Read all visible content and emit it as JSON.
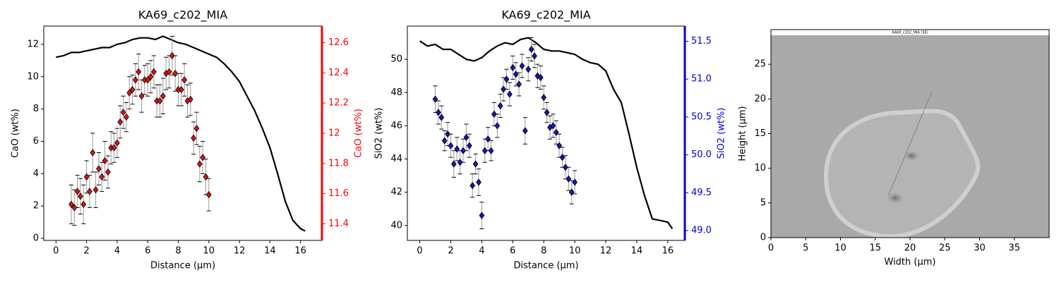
{
  "chart_data": [
    {
      "type": "line",
      "title": "KA69_c202_MIA",
      "xlabel": "Distance (µm)",
      "ylabel": "CaO (wt%)",
      "xlim": [
        -0.8,
        17.4
      ],
      "xticks": [
        0,
        2,
        4,
        6,
        8,
        10,
        12,
        14,
        16
      ],
      "ylim": [
        -0.13,
        13.13
      ],
      "yticks": [
        0,
        2,
        4,
        6,
        8,
        10,
        12
      ],
      "y2label": "CaO (wt%)",
      "y2color": "#ff0000",
      "y2lim": [
        11.29,
        12.71
      ],
      "y2ticks": [
        11.4,
        11.6,
        11.8,
        12.0,
        12.2,
        12.4,
        12.6
      ],
      "series": [
        {
          "color": "#000000",
          "x": [
            0,
            0.5,
            1,
            1.5,
            2,
            2.5,
            3,
            3.5,
            4,
            4.5,
            5,
            5.5,
            6,
            6.5,
            7,
            7.5,
            8,
            8.5,
            9,
            9.5,
            10,
            10.5,
            11,
            11.5,
            12,
            12.5,
            13,
            13.5,
            14,
            14.5,
            15,
            15.5,
            16,
            16.3
          ],
          "values": [
            11.2,
            11.3,
            11.5,
            11.5,
            11.6,
            11.7,
            11.8,
            11.8,
            12.0,
            12.1,
            12.3,
            12.4,
            12.4,
            12.3,
            12.5,
            12.3,
            12.1,
            12.0,
            11.8,
            11.6,
            11.4,
            11.2,
            10.8,
            10.3,
            9.7,
            8.8,
            7.9,
            6.8,
            5.6,
            4.0,
            2.3,
            1.1,
            0.6,
            0.45
          ]
        },
        {
          "color": "#dd1111",
          "marker": "diamond",
          "x": [
            1.0,
            1.2,
            1.4,
            1.6,
            1.8,
            2.0,
            2.2,
            2.4,
            2.6,
            2.8,
            3.0,
            3.2,
            3.4,
            3.6,
            3.8,
            4.0,
            4.2,
            4.4,
            4.6,
            4.8,
            5.0,
            5.2,
            5.4,
            5.6,
            5.8,
            6.0,
            6.2,
            6.4,
            6.6,
            6.8,
            7.0,
            7.2,
            7.4,
            7.6,
            7.8,
            8.0,
            8.2,
            8.4,
            8.6,
            8.8,
            9.0,
            9.2,
            9.4,
            9.6,
            9.8,
            10.0
          ],
          "values": [
            2.1,
            1.9,
            2.9,
            2.6,
            2.1,
            3.8,
            2.9,
            5.3,
            3.0,
            4.3,
            3.8,
            4.8,
            4.1,
            5.6,
            5.6,
            5.9,
            7.2,
            7.8,
            7.5,
            9.0,
            9.2,
            9.8,
            10.3,
            8.8,
            9.8,
            9.8,
            10.0,
            10.3,
            8.5,
            8.5,
            8.8,
            10.2,
            10.3,
            11.3,
            10.2,
            9.2,
            9.2,
            9.8,
            8.5,
            8.6,
            6.2,
            6.8,
            4.6,
            5.0,
            3.8,
            2.7
          ],
          "errors": [
            1.2,
            1.1,
            1.0,
            1.1,
            1.2,
            1.0,
            1.0,
            1.2,
            1.1,
            1.0,
            0.9,
            1.2,
            1.0,
            1.0,
            0.9,
            0.9,
            1.0,
            1.0,
            0.9,
            1.0,
            0.9,
            1.0,
            1.1,
            1.0,
            0.9,
            1.0,
            1.0,
            1.0,
            1.0,
            1.0,
            1.1,
            1.0,
            1.0,
            1.2,
            1.1,
            1.0,
            1.0,
            1.0,
            1.0,
            1.0,
            1.0,
            1.0,
            1.1,
            1.0,
            1.1,
            1.0
          ]
        }
      ]
    },
    {
      "type": "line",
      "title": "KA69_c202_MIA",
      "xlabel": "Distance (µm)",
      "ylabel": "SiO2 (wt%)",
      "xlim": [
        -0.8,
        17.1
      ],
      "xticks": [
        0,
        2,
        4,
        6,
        8,
        10,
        12,
        14,
        16
      ],
      "ylim": [
        39.1,
        52.0
      ],
      "yticks": [
        40,
        42,
        44,
        46,
        48,
        50
      ],
      "y2label": "SiO2 (wt%)",
      "y2color": "#0000dd",
      "y2lim": [
        48.87,
        51.7
      ],
      "y2ticks": [
        {
          "value": 49,
          "label": "49.0"
        },
        49.5,
        {
          "value": 50,
          "label": "50.0"
        },
        50.5,
        {
          "value": 51,
          "label": "51.0"
        },
        51.5
      ],
      "series": [
        {
          "color": "#000000",
          "x": [
            0,
            0.5,
            1,
            1.5,
            2,
            2.5,
            3,
            3.5,
            4,
            4.5,
            5,
            5.5,
            6,
            6.5,
            7,
            7.5,
            8,
            8.5,
            9,
            9.5,
            10,
            10.5,
            11,
            11.5,
            12,
            12.5,
            13,
            13.5,
            14,
            14.5,
            15,
            15.5,
            16,
            16.3
          ],
          "values": [
            51.1,
            50.8,
            50.9,
            50.6,
            50.6,
            50.3,
            50.0,
            49.9,
            50.1,
            50.5,
            50.8,
            51.0,
            50.9,
            51.2,
            51.3,
            51.0,
            50.6,
            50.5,
            50.5,
            50.4,
            50.3,
            50.0,
            49.8,
            49.7,
            49.3,
            48.2,
            47.4,
            45.5,
            43.5,
            41.8,
            40.4,
            40.3,
            40.2,
            39.8
          ]
        },
        {
          "color": "#1515bb",
          "marker": "diamond",
          "x": [
            1.0,
            1.2,
            1.4,
            1.6,
            1.8,
            2.0,
            2.2,
            2.4,
            2.6,
            2.8,
            3.0,
            3.2,
            3.4,
            3.6,
            3.8,
            4.0,
            4.2,
            4.4,
            4.6,
            4.8,
            5.0,
            5.2,
            5.4,
            5.6,
            5.8,
            6.0,
            6.2,
            6.4,
            6.6,
            6.8,
            7.0,
            7.2,
            7.4,
            7.6,
            7.8,
            8.0,
            8.2,
            8.4,
            8.6,
            8.8,
            9.0,
            9.2,
            9.4,
            9.6,
            9.8,
            10.0
          ],
          "values": [
            47.6,
            46.8,
            46.5,
            45.1,
            45.5,
            44.8,
            43.7,
            44.6,
            43.8,
            44.5,
            45.3,
            44.8,
            42.4,
            43.7,
            42.6,
            40.6,
            44.5,
            45.2,
            44.5,
            46.7,
            46.0,
            47.2,
            48.2,
            48.8,
            47.9,
            49.5,
            49.1,
            48.5,
            49.6,
            45.7,
            49.4,
            50.6,
            50.2,
            49.0,
            48.9,
            47.7,
            46.8,
            45.9,
            46.0,
            45.6,
            44.8,
            44.1,
            43.5,
            42.8,
            42.0,
            42.6
          ],
          "errors": [
            0.8,
            0.7,
            0.7,
            0.6,
            0.7,
            0.7,
            0.8,
            0.7,
            0.7,
            0.7,
            0.8,
            0.7,
            0.7,
            0.6,
            0.8,
            0.8,
            0.7,
            0.7,
            0.6,
            0.7,
            0.7,
            0.7,
            0.7,
            0.6,
            0.7,
            0.7,
            0.7,
            0.7,
            0.7,
            0.8,
            0.7,
            0.7,
            0.7,
            0.7,
            0.7,
            0.7,
            0.6,
            0.7,
            0.7,
            0.7,
            0.7,
            0.6,
            0.7,
            0.7,
            0.7,
            0.7
          ]
        }
      ]
    },
    {
      "type": "image",
      "image_title": "KA69_c202_MIA (SE)",
      "xlabel": "Width (µm)",
      "ylabel": "Height (µm)",
      "xlim": [
        0,
        40
      ],
      "xticks": [
        0,
        5,
        10,
        15,
        20,
        25,
        30,
        35
      ],
      "ylim": [
        0,
        30
      ],
      "yticks": [
        0,
        5,
        10,
        15,
        20,
        25
      ]
    }
  ]
}
